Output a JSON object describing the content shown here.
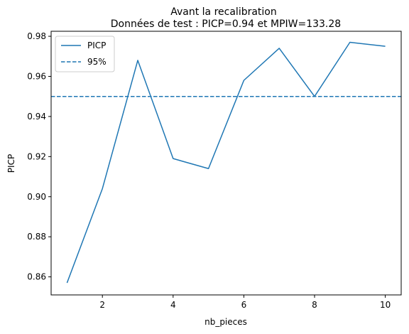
{
  "chart_data": {
    "type": "line",
    "title": "Avant la recalibration",
    "subtitle": "Données de test : PICP=0.94 et MPIW=133.28",
    "xlabel": "nb_pieces",
    "ylabel": "PICP",
    "xlim": [
      0.55,
      10.45
    ],
    "ylim": [
      0.851,
      0.9825
    ],
    "x_ticks": [
      2,
      4,
      6,
      8,
      10
    ],
    "y_ticks": [
      0.86,
      0.88,
      0.9,
      0.92,
      0.94,
      0.96,
      0.98
    ],
    "x_tick_labels": [
      "2",
      "4",
      "6",
      "8",
      "10"
    ],
    "y_tick_labels": [
      "0.86",
      "0.88",
      "0.90",
      "0.92",
      "0.94",
      "0.96",
      "0.98"
    ],
    "grid": false,
    "legend_position": "top-left",
    "series": [
      {
        "name": "PICP",
        "style": "solid",
        "color": "#1f77b4",
        "x": [
          1,
          2,
          3,
          4,
          5,
          6,
          7,
          8,
          9,
          10
        ],
        "y": [
          0.857,
          0.904,
          0.968,
          0.919,
          0.914,
          0.958,
          0.974,
          0.95,
          0.977,
          0.975
        ]
      },
      {
        "name": "95%",
        "style": "dashed",
        "color": "#1f77b4",
        "hline": 0.95
      }
    ]
  }
}
